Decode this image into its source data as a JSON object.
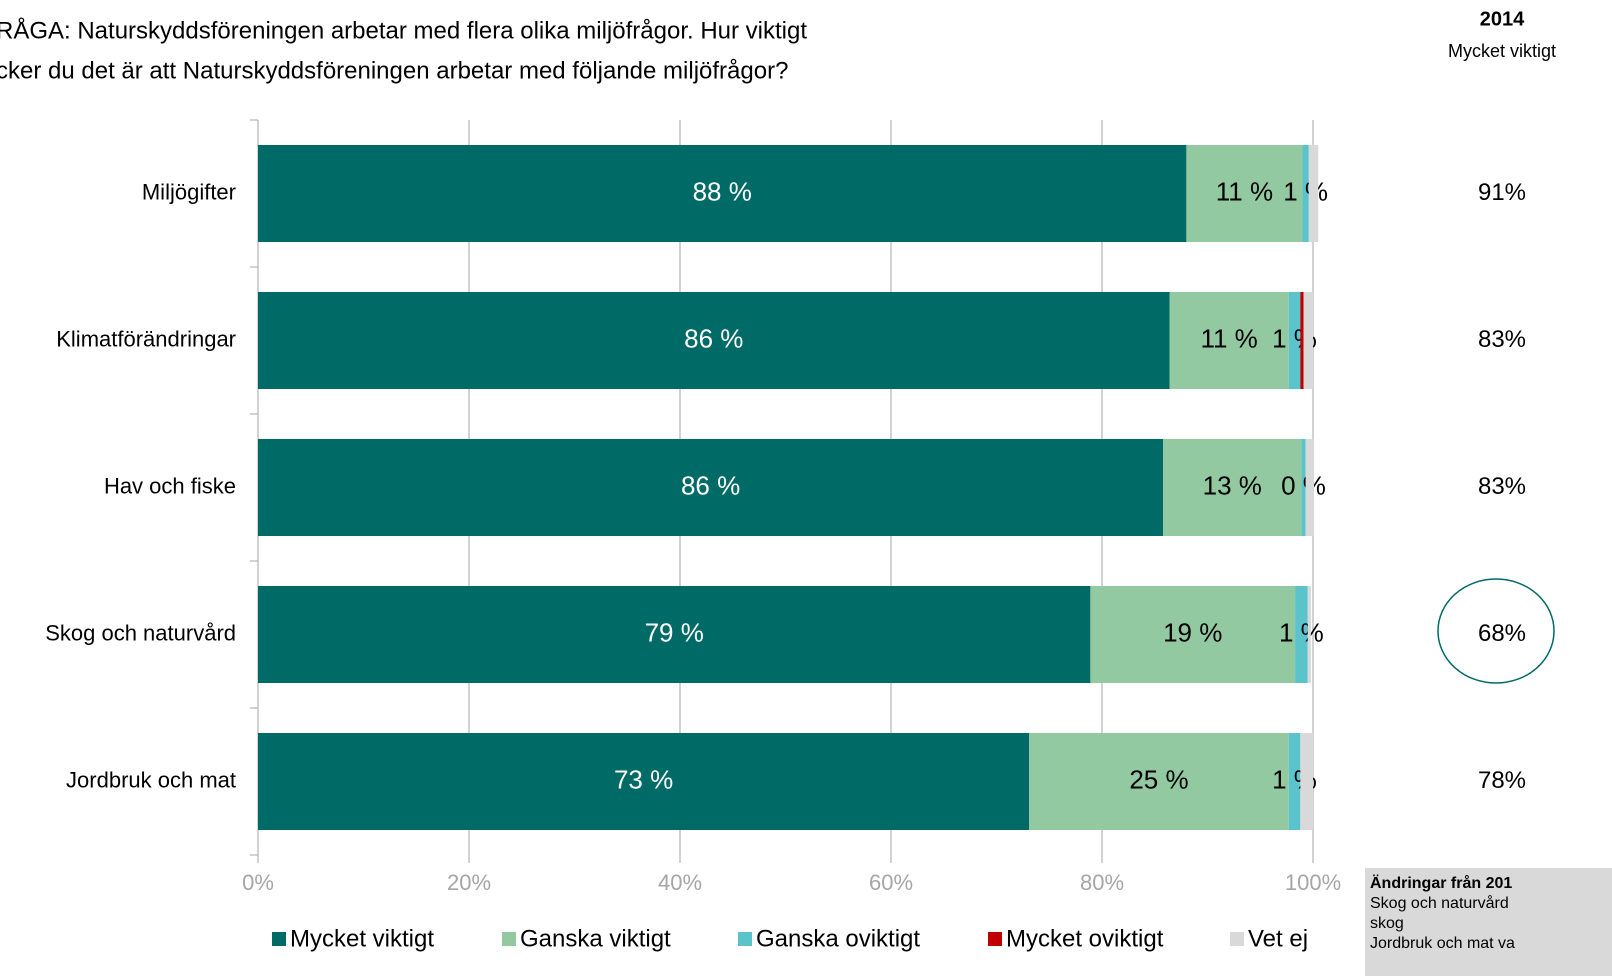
{
  "chart_data": {
    "type": "stacked_barh",
    "title_lines": [
      "RÅGA: Naturskyddsföreningen arbetar med flera olika miljöfrågor. Hur viktigt",
      "cker du det är att Naturskyddsföreningen arbetar med följande miljöfrågor?"
    ],
    "categories": [
      "Miljögifter",
      "Klimatförändringar",
      "Hav och fiske",
      "Skog och naturvård",
      "Jordbruk och mat"
    ],
    "series": [
      {
        "name": "Mycket viktigt",
        "color": "#006a67",
        "values": [
          88,
          86.4,
          85.8,
          78.9,
          73.1
        ],
        "value_labels": [
          "88 %",
          "86 %",
          "86 %",
          "79 %",
          "73 %"
        ]
      },
      {
        "name": "Ganska viktigt",
        "color": "#93c9a0",
        "values": [
          11,
          11.3,
          13.1,
          19.4,
          24.6
        ],
        "value_labels": [
          "11 %",
          "11 %",
          "13 %",
          "19 %",
          "25 %"
        ]
      },
      {
        "name": "Ganska oviktigt",
        "color": "#5bc3cc",
        "values": [
          0.6,
          1.1,
          0.4,
          1.2,
          1.1
        ],
        "value_labels": [
          "1 %",
          "1 %",
          "0 %",
          "1 %",
          "1 %"
        ]
      },
      {
        "name": "Mycket oviktigt",
        "color": "#c00000",
        "values": [
          0,
          0.3,
          0,
          0,
          0
        ]
      },
      {
        "name": "Vet ej",
        "color": "#d9d9d9",
        "values": [
          0.9,
          0.9,
          0.8,
          0.3,
          1.2
        ]
      }
    ],
    "xlim": [
      0,
      100
    ],
    "xticks": [
      {
        "value": 0,
        "label": "0%"
      },
      {
        "value": 20,
        "label": "20%"
      },
      {
        "value": 40,
        "label": "40%"
      },
      {
        "value": 60,
        "label": "60%"
      },
      {
        "value": 80,
        "label": "80%"
      },
      {
        "value": 100,
        "label": "100%"
      }
    ],
    "grid": true,
    "legend": "bottom"
  },
  "comparison": {
    "title": "2014",
    "subtitle": "Mycket viktigt",
    "labels": [
      "91%",
      "83%",
      "83%",
      "68%",
      "78%"
    ]
  },
  "note": {
    "title": "Ändringar från 201",
    "lines": [
      "Skog och naturvård",
      "skog",
      "Jordbruk och mat va"
    ]
  }
}
